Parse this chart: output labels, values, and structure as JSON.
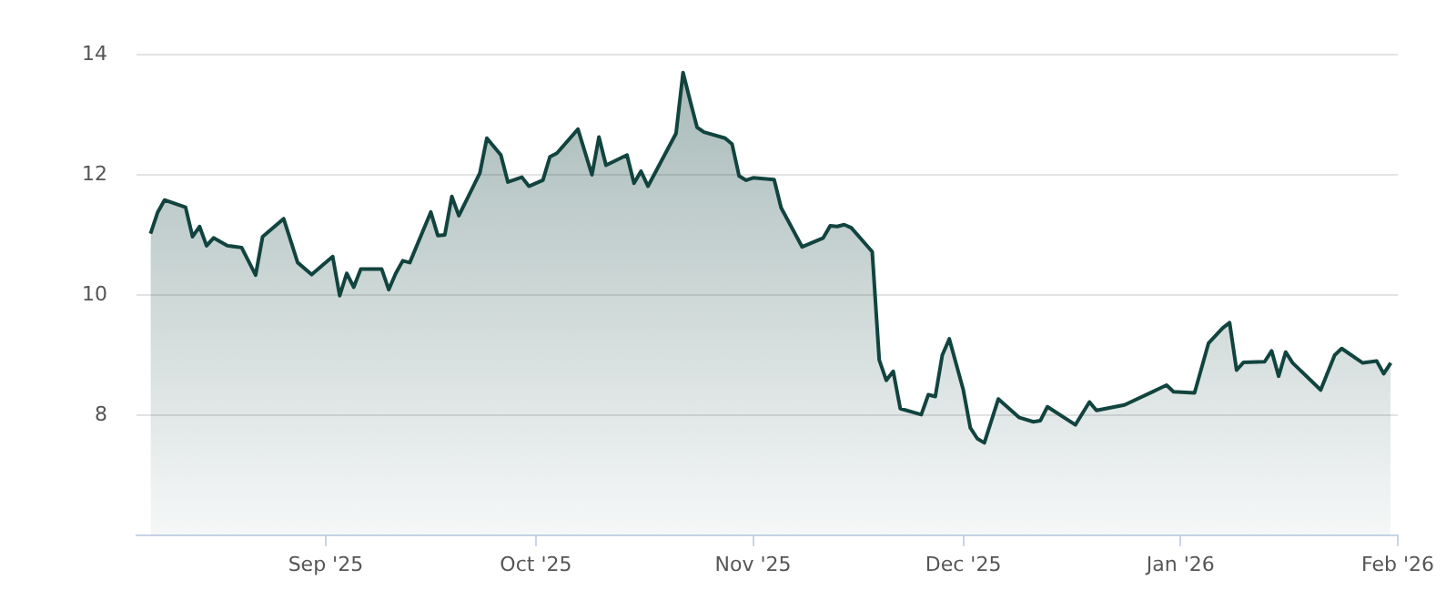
{
  "chart_data": {
    "type": "area",
    "grid": "y",
    "xlim": [
      "2025-08-05",
      "2026-02-01"
    ],
    "ylim": [
      6,
      14
    ],
    "yticks": [
      8,
      10,
      12,
      14
    ],
    "xticks": [
      {
        "value": "2025-09-01",
        "label": "Sep '25"
      },
      {
        "value": "2025-10-01",
        "label": "Oct '25"
      },
      {
        "value": "2025-11-01",
        "label": "Nov '25"
      },
      {
        "value": "2025-12-01",
        "label": "Dec '25"
      },
      {
        "value": "2026-01-01",
        "label": "Jan '26"
      },
      {
        "value": "2026-02-01",
        "label": "Feb '26"
      }
    ],
    "series": [
      {
        "color": "#12443f",
        "x": [
          "2025-08-07",
          "2025-08-08",
          "2025-08-09",
          "2025-08-12",
          "2025-08-13",
          "2025-08-14",
          "2025-08-15",
          "2025-08-16",
          "2025-08-18",
          "2025-08-20",
          "2025-08-22",
          "2025-08-23",
          "2025-08-26",
          "2025-08-28",
          "2025-08-30",
          "2025-09-02",
          "2025-09-03",
          "2025-09-04",
          "2025-09-05",
          "2025-09-06",
          "2025-09-09",
          "2025-09-10",
          "2025-09-11",
          "2025-09-12",
          "2025-09-13",
          "2025-09-16",
          "2025-09-17",
          "2025-09-18",
          "2025-09-19",
          "2025-09-20",
          "2025-09-23",
          "2025-09-24",
          "2025-09-26",
          "2025-09-27",
          "2025-09-29",
          "2025-09-30",
          "2025-10-02",
          "2025-10-03",
          "2025-10-04",
          "2025-10-07",
          "2025-10-09",
          "2025-10-10",
          "2025-10-11",
          "2025-10-14",
          "2025-10-15",
          "2025-10-16",
          "2025-10-17",
          "2025-10-21",
          "2025-10-22",
          "2025-10-23",
          "2025-10-24",
          "2025-10-25",
          "2025-10-28",
          "2025-10-29",
          "2025-10-30",
          "2025-10-31",
          "2025-11-01",
          "2025-11-04",
          "2025-11-05",
          "2025-11-08",
          "2025-11-11",
          "2025-11-12",
          "2025-11-13",
          "2025-11-14",
          "2025-11-15",
          "2025-11-18",
          "2025-11-19",
          "2025-11-20",
          "2025-11-21",
          "2025-11-22",
          "2025-11-25",
          "2025-11-26",
          "2025-11-27",
          "2025-11-28",
          "2025-11-29",
          "2025-12-01",
          "2025-12-02",
          "2025-12-03",
          "2025-12-04",
          "2025-12-06",
          "2025-12-09",
          "2025-12-11",
          "2025-12-12",
          "2025-12-13",
          "2025-12-17",
          "2025-12-19",
          "2025-12-20",
          "2025-12-24",
          "2025-12-30",
          "2025-12-31",
          "2026-01-03",
          "2026-01-05",
          "2026-01-07",
          "2026-01-08",
          "2026-01-09",
          "2026-01-10",
          "2026-01-13",
          "2026-01-14",
          "2026-01-15",
          "2026-01-16",
          "2026-01-17",
          "2026-01-21",
          "2026-01-23",
          "2026-01-24",
          "2026-01-27",
          "2026-01-29",
          "2026-01-30",
          "2026-01-31"
        ],
        "values": [
          11.02,
          11.37,
          11.58,
          11.46,
          10.97,
          11.14,
          10.82,
          10.95,
          10.82,
          10.79,
          10.33,
          10.97,
          11.27,
          10.54,
          10.34,
          10.64,
          9.99,
          10.36,
          10.13,
          10.43,
          10.43,
          10.09,
          10.36,
          10.57,
          10.54,
          11.38,
          10.99,
          11.0,
          11.64,
          11.32,
          12.03,
          12.61,
          12.33,
          11.88,
          11.96,
          11.81,
          11.91,
          12.3,
          12.36,
          12.76,
          12.0,
          12.63,
          12.16,
          12.33,
          11.86,
          12.06,
          11.81,
          12.69,
          13.7,
          13.24,
          12.79,
          12.71,
          12.61,
          12.51,
          11.98,
          11.91,
          11.95,
          11.92,
          11.45,
          10.8,
          10.95,
          11.15,
          11.14,
          11.17,
          11.12,
          10.72,
          8.92,
          8.58,
          8.73,
          8.11,
          8.01,
          8.34,
          8.31,
          9.0,
          9.27,
          8.42,
          7.79,
          7.61,
          7.54,
          8.27,
          7.96,
          7.89,
          7.91,
          8.14,
          7.84,
          8.22,
          8.08,
          8.17,
          8.5,
          8.39,
          8.37,
          9.2,
          9.45,
          9.54,
          8.75,
          8.88,
          8.89,
          9.07,
          8.65,
          9.05,
          8.87,
          8.42,
          9.0,
          9.11,
          8.87,
          8.9,
          8.69,
          8.87
        ]
      }
    ]
  }
}
